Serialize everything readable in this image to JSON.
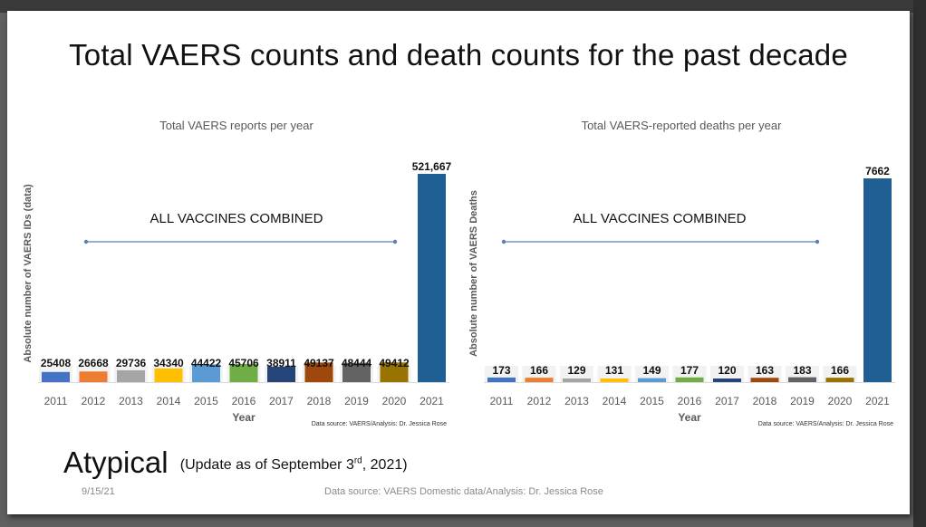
{
  "slide": {
    "title": "Total VAERS counts and death counts for the past decade",
    "heading": "Atypical",
    "update_note_pre": "(Update as of September 3",
    "update_note_sup": "rd",
    "update_note_post": ", 2021)",
    "footer_date": "9/15/21",
    "footer_source": "Data source: VAERS Domestic data/Analysis: Dr. Jessica Rose"
  },
  "chart_data": [
    {
      "type": "bar",
      "title": "Total VAERS reports per year",
      "xlabel": "Year",
      "ylabel": "Absolute number of VAERS IDs (data)",
      "annotation": "ALL VACCINES COMBINED",
      "source_note": "Data source: VAERS/Analysis: Dr. Jessica Rose",
      "categories": [
        "2011",
        "2012",
        "2013",
        "2014",
        "2015",
        "2016",
        "2017",
        "2018",
        "2019",
        "2020",
        "2021"
      ],
      "values": [
        25408,
        26668,
        29736,
        34340,
        44422,
        45706,
        38911,
        49137,
        48444,
        49412,
        521667
      ],
      "labels": [
        "25408",
        "26668",
        "29736",
        "34340",
        "44422",
        "45706",
        "38911",
        "49137",
        "48444",
        "49412",
        "521,667"
      ],
      "colors": [
        "#4472c4",
        "#ed7d31",
        "#a5a5a5",
        "#ffc000",
        "#5b9bd5",
        "#70ad47",
        "#264478",
        "#9e480e",
        "#636363",
        "#997300",
        "#1f5f94"
      ],
      "ylim": [
        0,
        521667
      ]
    },
    {
      "type": "bar",
      "title": "Total VAERS-reported deaths per year",
      "xlabel": "Year",
      "ylabel": "Absolute number of VAERS Deaths",
      "annotation": "ALL VACCINES COMBINED",
      "source_note": "Data source: VAERS/Analysis: Dr. Jessica Rose",
      "categories": [
        "2011",
        "2012",
        "2013",
        "2014",
        "2015",
        "2016",
        "2017",
        "2018",
        "2019",
        "2020",
        "2021"
      ],
      "values": [
        173,
        166,
        129,
        131,
        149,
        177,
        120,
        163,
        183,
        166,
        7662
      ],
      "labels": [
        "173",
        "166",
        "129",
        "131",
        "149",
        "177",
        "120",
        "163",
        "183",
        "166",
        "7662"
      ],
      "colors": [
        "#4472c4",
        "#ed7d31",
        "#a5a5a5",
        "#ffc000",
        "#5b9bd5",
        "#70ad47",
        "#264478",
        "#9e480e",
        "#636363",
        "#997300",
        "#1f5f94"
      ],
      "ylim": [
        0,
        7662
      ]
    }
  ]
}
